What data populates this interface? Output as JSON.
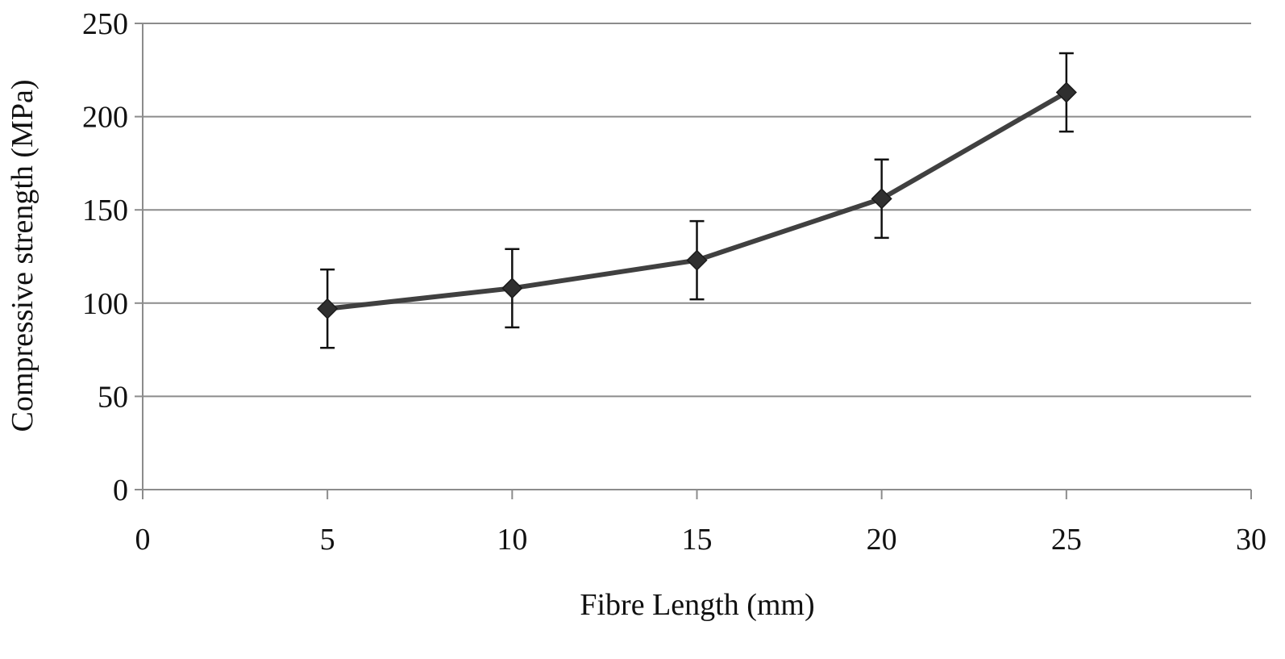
{
  "chart_data": {
    "type": "line",
    "title": "",
    "xlabel": "Fibre Length (mm)",
    "ylabel": "Compressive strength (MPa)",
    "xlim": [
      0,
      30
    ],
    "ylim": [
      0,
      250
    ],
    "x_ticks": [
      "0",
      "5",
      "10",
      "15",
      "20",
      "25",
      "30"
    ],
    "y_ticks": [
      "0",
      "50",
      "100",
      "150",
      "200",
      "250"
    ],
    "grid": "horizontal",
    "legend": "none",
    "marker": "diamond",
    "colors": {
      "line": "#404040",
      "grid": "#8c8c8c",
      "axis": "#8c8c8c",
      "errorbar": "#111111"
    },
    "series": [
      {
        "x": [
          5,
          10,
          15,
          20,
          25
        ],
        "y": [
          97,
          108,
          123,
          156,
          213
        ],
        "error": [
          21,
          21,
          21,
          21,
          21
        ]
      }
    ]
  }
}
